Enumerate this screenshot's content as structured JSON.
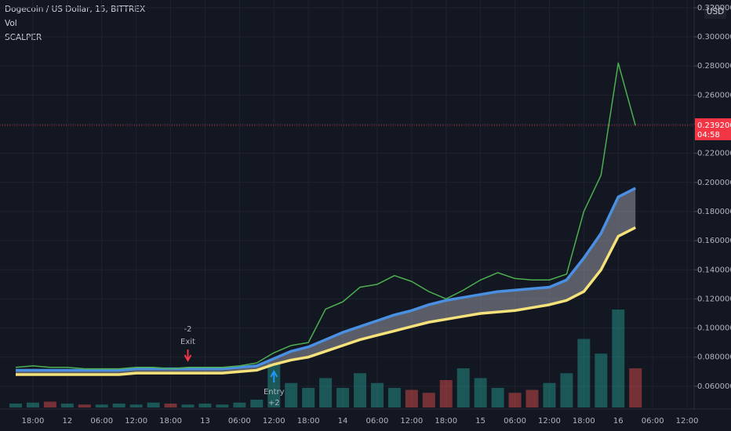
{
  "header": {
    "title": "Dogecoin / US Dollar, 15, BITTREX",
    "indicators": [
      "Vol",
      "SCALPER"
    ],
    "currency": "USD"
  },
  "chart_data": {
    "type": "line",
    "categories": [
      null,
      "18:00",
      null,
      "12",
      null,
      "06:00",
      null,
      "12:00",
      null,
      "18:00",
      null,
      "13",
      null,
      "06:00",
      null,
      "12:00",
      null,
      "18:00",
      null,
      "14",
      null,
      "06:00",
      null,
      "12:00",
      null,
      "18:00",
      null,
      "15",
      null,
      "06:00",
      null,
      "12:00",
      null,
      "18:00",
      null,
      "16",
      null,
      "06:00",
      null,
      "12:00"
    ],
    "series": [
      {
        "name": "Price",
        "color": "#4caf50",
        "values": [
          0.073,
          0.074,
          0.073,
          0.073,
          0.072,
          0.072,
          0.072,
          0.073,
          0.073,
          0.072,
          0.073,
          0.073,
          0.073,
          0.074,
          0.076,
          0.083,
          0.088,
          0.09,
          0.113,
          0.118,
          0.128,
          0.13,
          0.136,
          0.132,
          0.125,
          0.12,
          0.126,
          0.133,
          0.138,
          0.134,
          0.133,
          0.133,
          0.137,
          0.18,
          0.205,
          0.282,
          0.239,
          null,
          null,
          null
        ]
      },
      {
        "name": "Upper band",
        "color": "#4a90e2",
        "values": [
          0.071,
          0.071,
          0.071,
          0.071,
          0.071,
          0.071,
          0.071,
          0.072,
          0.072,
          0.072,
          0.072,
          0.072,
          0.072,
          0.073,
          0.074,
          0.079,
          0.084,
          0.087,
          0.092,
          0.097,
          0.101,
          0.105,
          0.109,
          0.112,
          0.116,
          0.119,
          0.121,
          0.123,
          0.125,
          0.126,
          0.127,
          0.128,
          0.133,
          0.148,
          0.165,
          0.19,
          0.196,
          null,
          null,
          null
        ]
      },
      {
        "name": "Lower band",
        "color": "#f5e27a",
        "values": [
          0.068,
          0.068,
          0.068,
          0.068,
          0.068,
          0.068,
          0.068,
          0.069,
          0.069,
          0.069,
          0.069,
          0.069,
          0.069,
          0.07,
          0.071,
          0.075,
          0.078,
          0.08,
          0.084,
          0.088,
          0.092,
          0.095,
          0.098,
          0.101,
          0.104,
          0.106,
          0.108,
          0.11,
          0.111,
          0.112,
          0.114,
          0.116,
          0.119,
          0.125,
          0.14,
          0.163,
          0.169,
          null,
          null,
          null
        ]
      }
    ],
    "volume": [
      4,
      5,
      6,
      4,
      3,
      3,
      4,
      3,
      5,
      4,
      3,
      4,
      3,
      5,
      8,
      45,
      25,
      20,
      30,
      20,
      35,
      25,
      20,
      18,
      15,
      28,
      40,
      30,
      20,
      15,
      18,
      25,
      35,
      70,
      55,
      100,
      40,
      null,
      null,
      null
    ],
    "ylim": [
      0.0454,
      0.3253
    ],
    "yticks": [
      {
        "value": 0.06,
        "label": "0.06000000"
      },
      {
        "value": 0.08,
        "label": "0.08000000"
      },
      {
        "value": 0.1,
        "label": "0.10000000"
      },
      {
        "value": 0.12,
        "label": "0.12000000"
      },
      {
        "value": 0.14,
        "label": "0.14000000"
      },
      {
        "value": 0.16,
        "label": "0.16000000"
      },
      {
        "value": 0.18,
        "label": "0.18000000"
      },
      {
        "value": 0.2,
        "label": "0.20000000"
      },
      {
        "value": 0.22,
        "label": "0.22000000"
      },
      {
        "value": 0.24,
        "label": "0.24000000"
      },
      {
        "value": 0.26,
        "label": "0.26000000"
      },
      {
        "value": 0.28,
        "label": "0.28000000"
      },
      {
        "value": 0.3,
        "label": "0.30000000"
      },
      {
        "value": 0.32,
        "label": "0.32000000"
      }
    ],
    "grid": true,
    "price_line": {
      "value": 0.2392,
      "label": "0.23920000",
      "countdown": "04:58",
      "color": "#f23645"
    },
    "annotations": [
      {
        "type": "exit",
        "category": 10,
        "quantity": "-2",
        "text": "Exit",
        "color": "#f23645"
      },
      {
        "type": "entry",
        "category": 15,
        "text": "Entry",
        "quantity": "+2",
        "color": "#2196f3"
      }
    ]
  }
}
